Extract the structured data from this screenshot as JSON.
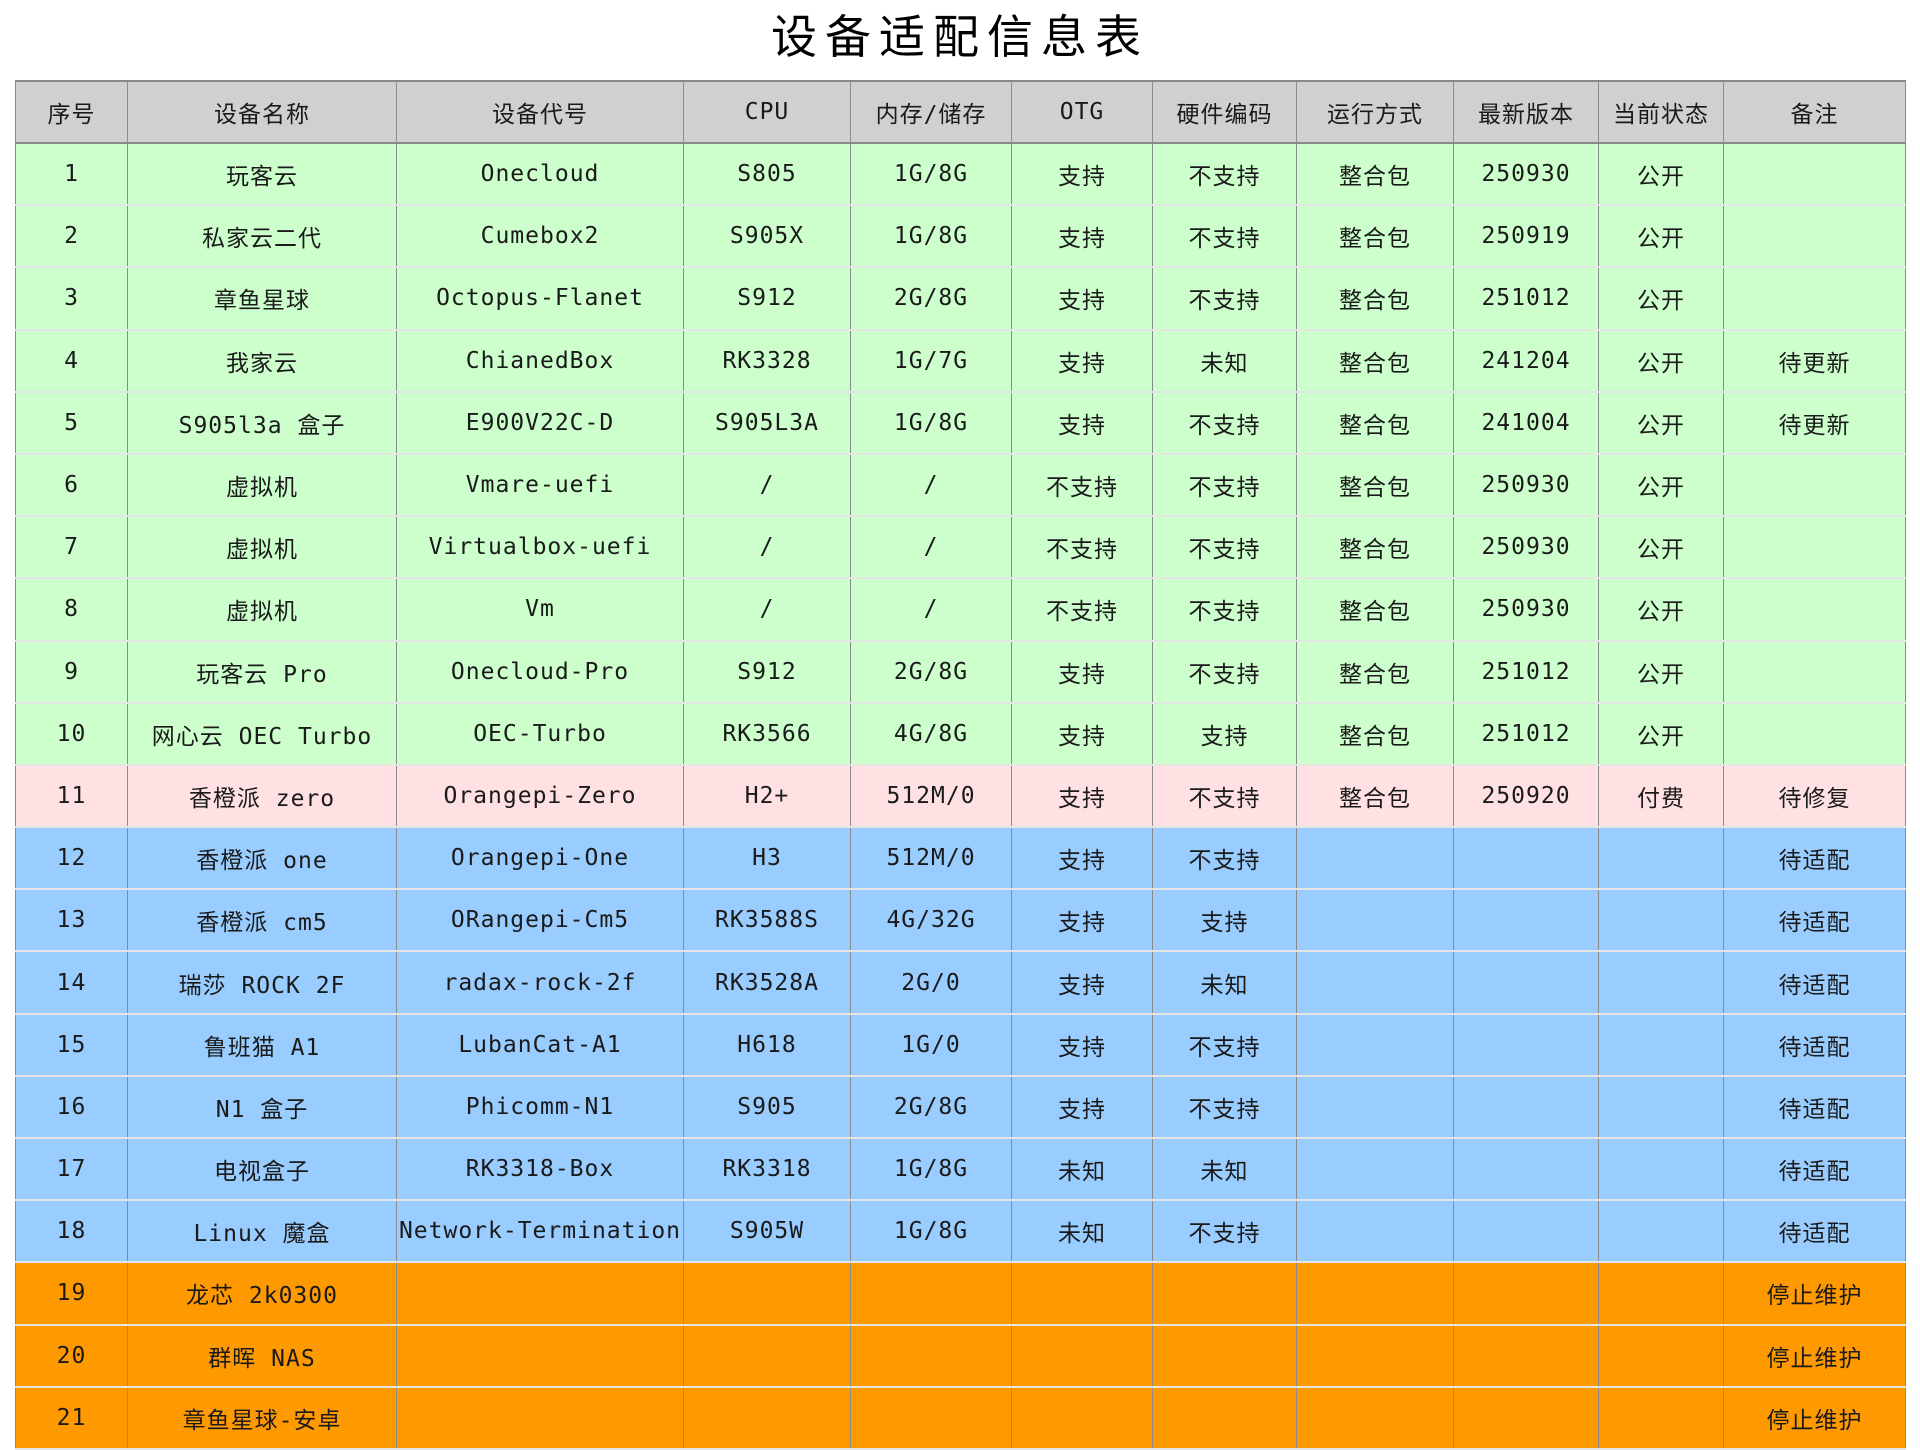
{
  "title": "设备适配信息表",
  "colors": {
    "header": "#d0d0d0",
    "public": "#ccffcc",
    "paid": "#ffe1e4",
    "pending": "#99ccff",
    "discontinued": "#ff9900"
  },
  "columns": [
    "序号",
    "设备名称",
    "设备代号",
    "CPU",
    "内存/储存",
    "OTG",
    "硬件编码",
    "运行方式",
    "最新版本",
    "当前状态",
    "备注"
  ],
  "rows": [
    {
      "group": "g",
      "cells": [
        "1",
        "玩客云",
        "Onecloud",
        "S805",
        "1G/8G",
        "支持",
        "不支持",
        "整合包",
        "250930",
        "公开",
        ""
      ]
    },
    {
      "group": "g",
      "cells": [
        "2",
        "私家云二代",
        "Cumebox2",
        "S905X",
        "1G/8G",
        "支持",
        "不支持",
        "整合包",
        "250919",
        "公开",
        ""
      ]
    },
    {
      "group": "g",
      "cells": [
        "3",
        "章鱼星球",
        "Octopus-Flanet",
        "S912",
        "2G/8G",
        "支持",
        "不支持",
        "整合包",
        "251012",
        "公开",
        ""
      ]
    },
    {
      "group": "g",
      "cells": [
        "4",
        "我家云",
        "ChianedBox",
        "RK3328",
        "1G/7G",
        "支持",
        "未知",
        "整合包",
        "241204",
        "公开",
        "待更新"
      ]
    },
    {
      "group": "g",
      "cells": [
        "5",
        "S905l3a 盒子",
        "E900V22C-D",
        "S905L3A",
        "1G/8G",
        "支持",
        "不支持",
        "整合包",
        "241004",
        "公开",
        "待更新"
      ]
    },
    {
      "group": "g",
      "cells": [
        "6",
        "虚拟机",
        "Vmare-uefi",
        "/",
        "/",
        "不支持",
        "不支持",
        "整合包",
        "250930",
        "公开",
        ""
      ]
    },
    {
      "group": "g",
      "cells": [
        "7",
        "虚拟机",
        "Virtualbox-uefi",
        "/",
        "/",
        "不支持",
        "不支持",
        "整合包",
        "250930",
        "公开",
        ""
      ]
    },
    {
      "group": "g",
      "cells": [
        "8",
        "虚拟机",
        "Vm",
        "/",
        "/",
        "不支持",
        "不支持",
        "整合包",
        "250930",
        "公开",
        ""
      ]
    },
    {
      "group": "g",
      "cells": [
        "9",
        "玩客云 Pro",
        "Onecloud-Pro",
        "S912",
        "2G/8G",
        "支持",
        "不支持",
        "整合包",
        "251012",
        "公开",
        ""
      ]
    },
    {
      "group": "g",
      "cells": [
        "10",
        "网心云 OEC Turbo",
        "OEC-Turbo",
        "RK3566",
        "4G/8G",
        "支持",
        "支持",
        "整合包",
        "251012",
        "公开",
        ""
      ]
    },
    {
      "group": "p",
      "cells": [
        "11",
        "香橙派 zero",
        "Orangepi-Zero",
        "H2+",
        "512M/0",
        "支持",
        "不支持",
        "整合包",
        "250920",
        "付费",
        "待修复"
      ]
    },
    {
      "group": "b",
      "cells": [
        "12",
        "香橙派 one",
        "Orangepi-One",
        "H3",
        "512M/0",
        "支持",
        "不支持",
        "",
        "",
        "",
        "待适配"
      ]
    },
    {
      "group": "b",
      "cells": [
        "13",
        "香橙派 cm5",
        "ORangepi-Cm5",
        "RK3588S",
        "4G/32G",
        "支持",
        "支持",
        "",
        "",
        "",
        "待适配"
      ]
    },
    {
      "group": "b",
      "cells": [
        "14",
        "瑞莎 ROCK 2F",
        "radax-rock-2f",
        "RK3528A",
        "2G/0",
        "支持",
        "未知",
        "",
        "",
        "",
        "待适配"
      ]
    },
    {
      "group": "b",
      "cells": [
        "15",
        "鲁班猫 A1",
        "LubanCat-A1",
        "H618",
        "1G/0",
        "支持",
        "不支持",
        "",
        "",
        "",
        "待适配"
      ]
    },
    {
      "group": "b",
      "cells": [
        "16",
        "N1 盒子",
        "Phicomm-N1",
        "S905",
        "2G/8G",
        "支持",
        "不支持",
        "",
        "",
        "",
        "待适配"
      ]
    },
    {
      "group": "b",
      "cells": [
        "17",
        "电视盒子",
        "RK3318-Box",
        "RK3318",
        "1G/8G",
        "未知",
        "未知",
        "",
        "",
        "",
        "待适配"
      ]
    },
    {
      "group": "b",
      "cells": [
        "18",
        "Linux 魔盒",
        "Network-Termination",
        "S905W",
        "1G/8G",
        "未知",
        "不支持",
        "",
        "",
        "",
        "待适配"
      ]
    },
    {
      "group": "o",
      "cells": [
        "19",
        "龙芯 2k0300",
        "",
        "",
        "",
        "",
        "",
        "",
        "",
        "",
        "停止维护"
      ]
    },
    {
      "group": "o",
      "cells": [
        "20",
        "群晖 NAS",
        "",
        "",
        "",
        "",
        "",
        "",
        "",
        "",
        "停止维护"
      ]
    },
    {
      "group": "o",
      "cells": [
        "21",
        "章鱼星球-安卓",
        "",
        "",
        "",
        "",
        "",
        "",
        "",
        "",
        "停止维护"
      ]
    }
  ]
}
